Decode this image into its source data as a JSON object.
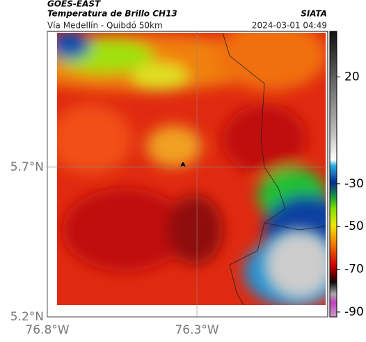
{
  "header": {
    "title": "GOES-EAST",
    "subtitle": "Temperatura de Brillo CH13",
    "source": "SIATA",
    "route": "Vía Medellín - Quibdó 50km",
    "timestamp": "2024-03-01 04:49"
  },
  "map": {
    "xlim": [
      -76.8,
      -75.863
    ],
    "ylim": [
      5.2,
      6.153
    ],
    "xticks": [
      {
        "value": -76.8,
        "label": "76.8°W"
      },
      {
        "value": -76.3,
        "label": "76.3°W"
      }
    ],
    "yticks": [
      {
        "value": 5.2,
        "label": "5.2°N"
      },
      {
        "value": 5.7,
        "label": "5.7°N"
      }
    ],
    "grid": true
  },
  "colorbar": {
    "lim": [
      -92.3,
      41.3
    ],
    "ticks": [
      20,
      -30,
      -50,
      -70,
      -90
    ]
  }
}
